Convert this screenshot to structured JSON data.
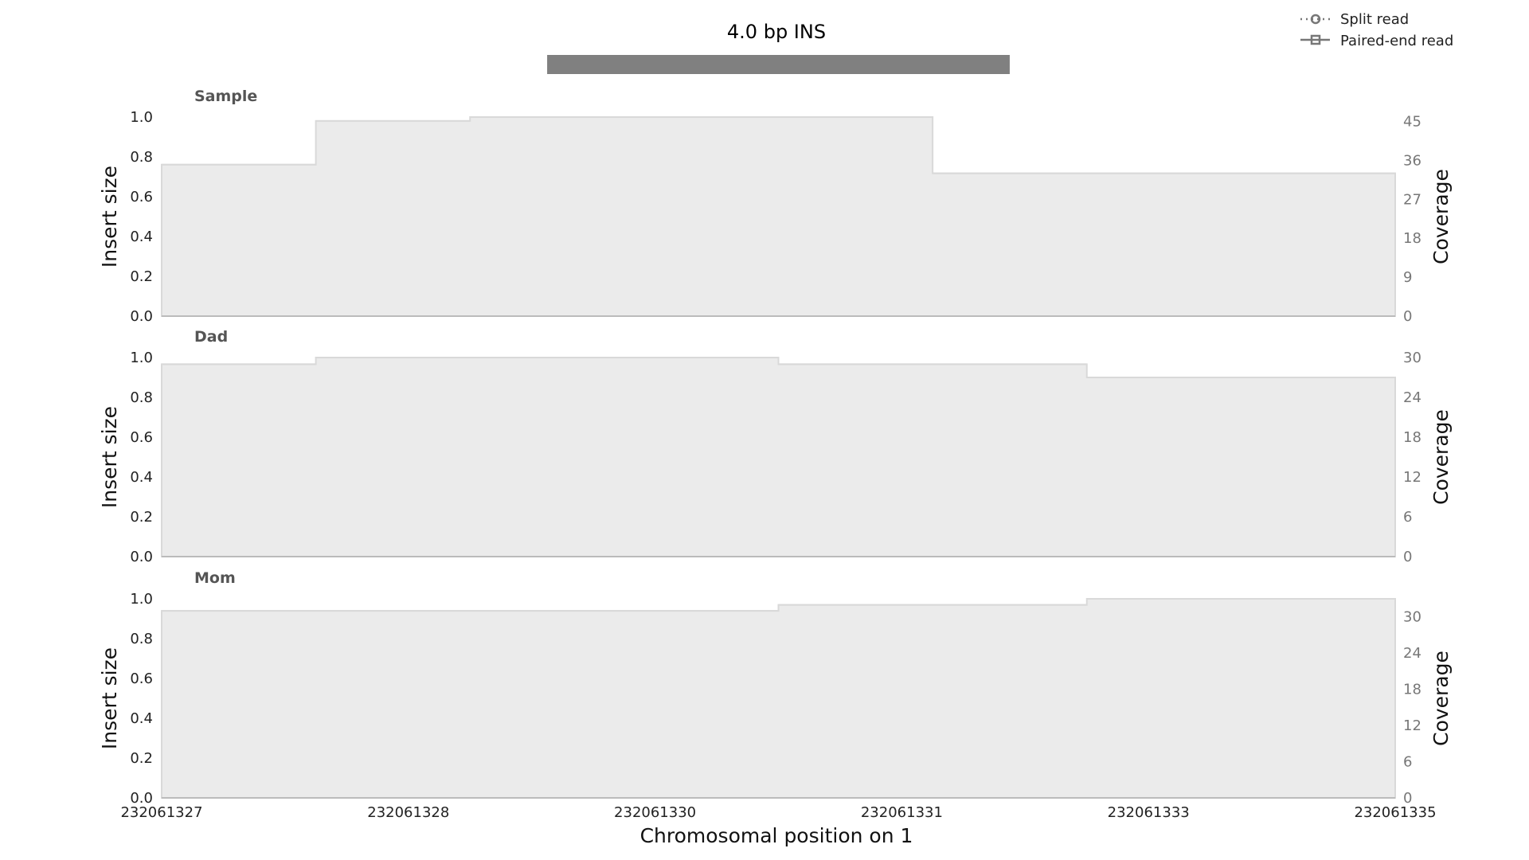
{
  "chart_data": {
    "type": "area",
    "title": "4.0 bp INS",
    "sv_region": {
      "start": 232061329.5,
      "end": 232061332.5,
      "color": "#808080"
    },
    "xlabel": "Chromosomal position on 1",
    "xlim": [
      232061327,
      232061335
    ],
    "x_tick_values": [
      232061327,
      232061328.6,
      232061330.2,
      232061331.8,
      232061333.4,
      232061335
    ],
    "x_tick_labels": [
      "232061327",
      "232061328",
      "232061330",
      "232061331",
      "232061333",
      "232061335"
    ],
    "legend": {
      "position": "top-right",
      "items": [
        {
          "label": "Split read",
          "style": "dotted-circle"
        },
        {
          "label": "Paired-end read",
          "style": "solid-square"
        }
      ]
    },
    "colors": {
      "fill": "#ebebeb",
      "stroke": "#d9d9d9",
      "axis": "#bbbbbb",
      "legend_marker": "#777777"
    },
    "panels": [
      {
        "name": "Sample",
        "ylabel_left": "Insert size",
        "ylabel_right": "Coverage",
        "left_ticks": [
          "0.0",
          "0.2",
          "0.4",
          "0.6",
          "0.8",
          "1.0"
        ],
        "right_ticks": [
          "0",
          "9",
          "18",
          "27",
          "36",
          "45"
        ],
        "right_max": 46,
        "coverage_steps": [
          {
            "x0": 232061327,
            "x1": 232061328,
            "y": 35
          },
          {
            "x0": 232061328,
            "x1": 232061329,
            "y": 45.1
          },
          {
            "x0": 232061329,
            "x1": 232061332,
            "y": 46
          },
          {
            "x0": 232061332,
            "x1": 232061335,
            "y": 33
          }
        ]
      },
      {
        "name": "Dad",
        "ylabel_left": "Insert size",
        "ylabel_right": "Coverage",
        "left_ticks": [
          "0.0",
          "0.2",
          "0.4",
          "0.6",
          "0.8",
          "1.0"
        ],
        "right_ticks": [
          "0",
          "6",
          "12",
          "18",
          "24",
          "30"
        ],
        "right_max": 30,
        "coverage_steps": [
          {
            "x0": 232061327,
            "x1": 232061328,
            "y": 29
          },
          {
            "x0": 232061328,
            "x1": 232061331,
            "y": 30
          },
          {
            "x0": 232061331,
            "x1": 232061333,
            "y": 29
          },
          {
            "x0": 232061333,
            "x1": 232061335,
            "y": 27
          }
        ]
      },
      {
        "name": "Mom",
        "ylabel_left": "Insert size",
        "ylabel_right": "Coverage",
        "left_ticks": [
          "0.0",
          "0.2",
          "0.4",
          "0.6",
          "0.8",
          "1.0"
        ],
        "right_ticks": [
          "0",
          "6",
          "12",
          "18",
          "24",
          "30"
        ],
        "right_max": 33,
        "coverage_steps": [
          {
            "x0": 232061327,
            "x1": 232061331,
            "y": 31
          },
          {
            "x0": 232061331,
            "x1": 232061333,
            "y": 32
          },
          {
            "x0": 232061333,
            "x1": 232061335,
            "y": 33
          }
        ]
      }
    ]
  }
}
